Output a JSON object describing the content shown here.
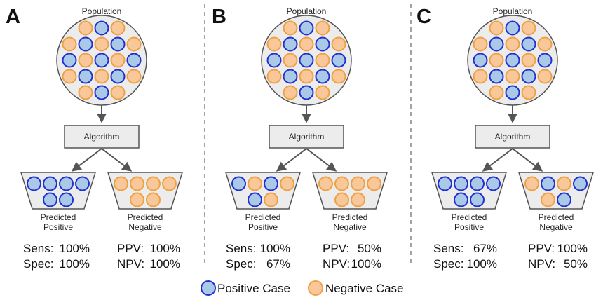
{
  "colors": {
    "positive_fill": "#a9c9e6",
    "positive_stroke": "#1f2fd1",
    "negative_fill": "#f8c89a",
    "negative_stroke": "#f0a040",
    "box_fill": "#ececec",
    "box_stroke": "#555555",
    "arrow": "#555555",
    "divider": "#666666"
  },
  "panels": [
    {
      "letter": "A",
      "population_label": "Population",
      "population": [
        [
          "N",
          "P",
          "N"
        ],
        [
          "N",
          "P",
          "N",
          "P",
          "N"
        ],
        [
          "P",
          "N",
          "P",
          "N",
          "P"
        ],
        [
          "N",
          "P",
          "N",
          "P",
          "N"
        ],
        [
          "N",
          "P",
          "N"
        ]
      ],
      "algorithm_label": "Algorithm",
      "predicted_positive": {
        "label_line1": "Predicted",
        "label_line2": "Positive",
        "top": [
          "P",
          "P",
          "P",
          "P"
        ],
        "bottom": [
          "P",
          "P"
        ]
      },
      "predicted_negative": {
        "label_line1": "Predicted",
        "label_line2": "Negative",
        "top": [
          "N",
          "N",
          "N",
          "N"
        ],
        "bottom": [
          "N",
          "N"
        ]
      },
      "sens_label": "Sens:",
      "sens_value": "100%",
      "spec_label": "Spec:",
      "spec_value": "100%",
      "ppv_label": "PPV:",
      "ppv_value": "100%",
      "npv_label": "NPV:",
      "npv_value": "100%"
    },
    {
      "letter": "B",
      "population_label": "Population",
      "population": [
        [
          "N",
          "P",
          "N"
        ],
        [
          "N",
          "P",
          "N",
          "P",
          "N"
        ],
        [
          "P",
          "N",
          "P",
          "N",
          "P"
        ],
        [
          "N",
          "P",
          "N",
          "P",
          "N"
        ],
        [
          "N",
          "P",
          "N"
        ]
      ],
      "algorithm_label": "Algorithm",
      "predicted_positive": {
        "label_line1": "Predicted",
        "label_line2": "Positive",
        "top": [
          "P",
          "N",
          "P",
          "N"
        ],
        "bottom": [
          "P",
          "N"
        ]
      },
      "predicted_negative": {
        "label_line1": "Predicted",
        "label_line2": "Negative",
        "top": [
          "N",
          "N",
          "N",
          "N"
        ],
        "bottom": [
          "N",
          "N"
        ]
      },
      "sens_label": "Sens:",
      "sens_value": "100%",
      "spec_label": "Spec:",
      "spec_value": "67%",
      "ppv_label": "PPV:",
      "ppv_value": "50%",
      "npv_label": "NPV:",
      "npv_value": "100%"
    },
    {
      "letter": "C",
      "population_label": "Population",
      "population": [
        [
          "N",
          "P",
          "N"
        ],
        [
          "N",
          "P",
          "N",
          "P",
          "N"
        ],
        [
          "P",
          "N",
          "P",
          "N",
          "P"
        ],
        [
          "N",
          "P",
          "N",
          "P",
          "N"
        ],
        [
          "N",
          "P",
          "N"
        ]
      ],
      "algorithm_label": "Algorithm",
      "predicted_positive": {
        "label_line1": "Predicted",
        "label_line2": "Positive",
        "top": [
          "P",
          "P",
          "P",
          "P"
        ],
        "bottom": [
          "P",
          "P"
        ]
      },
      "predicted_negative": {
        "label_line1": "Predicted",
        "label_line2": "Negative",
        "top": [
          "N",
          "P",
          "N",
          "P"
        ],
        "bottom": [
          "N",
          "P"
        ]
      },
      "sens_label": "Sens:",
      "sens_value": "67%",
      "spec_label": "Spec:",
      "spec_value": "100%",
      "ppv_label": "PPV:",
      "ppv_value": "100%",
      "npv_label": "NPV:",
      "npv_value": "50%"
    }
  ],
  "legend": {
    "positive_label": "Positive Case",
    "negative_label": "Negative Case"
  }
}
